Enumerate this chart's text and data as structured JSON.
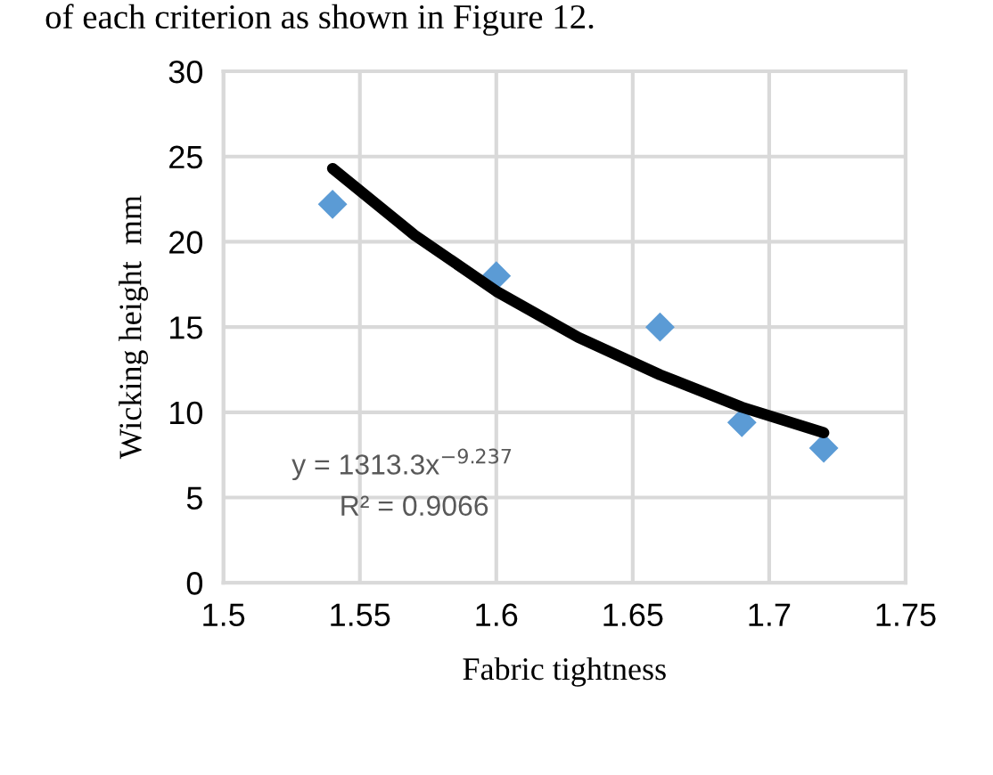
{
  "chart_data": {
    "type": "scatter",
    "xlabel": "Fabric tightness",
    "ylabel": "Wicking height  mm",
    "xlim": [
      1.5,
      1.75
    ],
    "xticks": [
      1.5,
      1.55,
      1.6,
      1.65,
      1.7,
      1.75
    ],
    "ylim": [
      0,
      30
    ],
    "yticks": [
      0,
      5,
      10,
      15,
      20,
      25,
      30
    ],
    "grid": true,
    "series": [
      {
        "color": "#5b9bd5",
        "marker": "diamond",
        "x": [
          1.54,
          1.6,
          1.66,
          1.69,
          1.72
        ],
        "values": [
          22.2,
          18,
          15,
          9.4,
          7.9
        ]
      },
      {
        "type": "line",
        "color": "#000000",
        "x": [
          1.54,
          1.57,
          1.6,
          1.63,
          1.66,
          1.69,
          1.72
        ],
        "values": [
          24.3,
          20.4,
          17.1,
          14.4,
          12.2,
          10.3,
          8.8
        ]
      }
    ],
    "annotations": [
      "of each criterion as shown in Figure 12.",
      "y = 1313.3x$^{−9.237}$",
      "R² = 0.9066"
    ]
  }
}
